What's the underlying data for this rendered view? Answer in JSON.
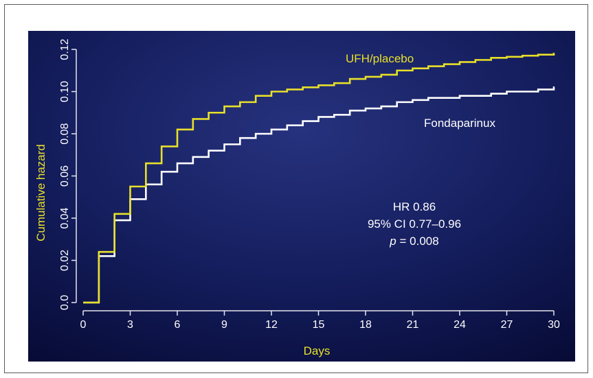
{
  "chart_data": {
    "type": "line",
    "line_style": "step",
    "xlabel": "Days",
    "ylabel": "Cumulative hazard",
    "xlim": [
      0,
      30
    ],
    "ylim": [
      0,
      0.12
    ],
    "xticks": [
      "0",
      "3",
      "6",
      "9",
      "12",
      "15",
      "18",
      "21",
      "24",
      "27",
      "30"
    ],
    "yticks": [
      "0.0",
      "0.02",
      "0.04",
      "0.06",
      "0.08",
      "0.10",
      "0.12"
    ],
    "grid": false,
    "background": "dark-blue-gradient",
    "series": [
      {
        "name": "UFH/placebo",
        "color": "#e8e02a",
        "x": [
          0,
          1,
          2,
          3,
          4,
          5,
          6,
          7,
          8,
          9,
          10,
          11,
          12,
          13,
          14,
          15,
          16,
          17,
          18,
          19,
          20,
          21,
          22,
          23,
          24,
          25,
          26,
          27,
          28,
          29,
          30
        ],
        "y": [
          0.0,
          0.024,
          0.042,
          0.055,
          0.066,
          0.074,
          0.082,
          0.087,
          0.09,
          0.093,
          0.095,
          0.098,
          0.1,
          0.101,
          0.102,
          0.103,
          0.104,
          0.106,
          0.107,
          0.108,
          0.11,
          0.111,
          0.112,
          0.113,
          0.114,
          0.115,
          0.116,
          0.1165,
          0.117,
          0.1175,
          0.118
        ]
      },
      {
        "name": "Fondaparinux",
        "color": "#ffffff",
        "x": [
          0,
          1,
          2,
          3,
          4,
          5,
          6,
          7,
          8,
          9,
          10,
          11,
          12,
          13,
          14,
          15,
          16,
          17,
          18,
          19,
          20,
          21,
          22,
          23,
          24,
          25,
          26,
          27,
          28,
          29,
          30
        ],
        "y": [
          0.0,
          0.022,
          0.039,
          0.049,
          0.056,
          0.062,
          0.066,
          0.069,
          0.072,
          0.075,
          0.078,
          0.08,
          0.082,
          0.084,
          0.086,
          0.088,
          0.089,
          0.091,
          0.092,
          0.093,
          0.095,
          0.096,
          0.097,
          0.097,
          0.098,
          0.098,
          0.099,
          0.1,
          0.1,
          0.101,
          0.102
        ]
      }
    ],
    "annotations": {
      "hr": "HR 0.86",
      "ci": "95% CI 0.77–0.96",
      "p_italic": "p",
      "p_rest": " = 0.008"
    }
  }
}
